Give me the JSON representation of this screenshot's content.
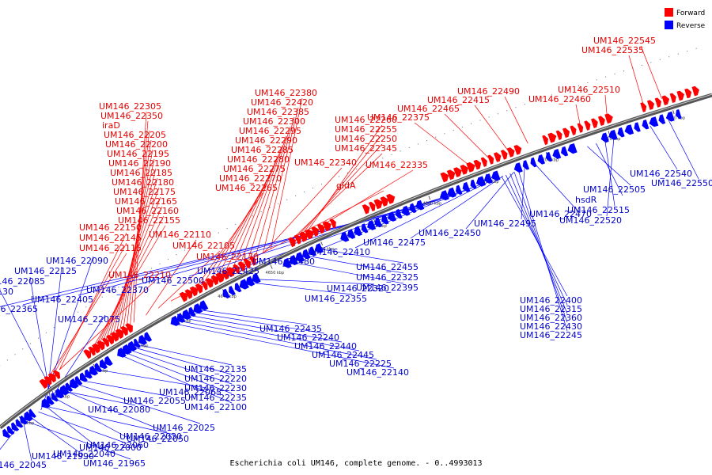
{
  "legend": {
    "forward": {
      "label": "Forward",
      "color": "#ff0000"
    },
    "reverse": {
      "label": "Reverse",
      "color": "#0000ff"
    }
  },
  "caption": "Escherichia coli UM146, complete genome. - 0..4993013",
  "backbone_range_kbp": [
    4585,
    4726
  ],
  "ticks": [
    "4590 kbp",
    "4600 kbp",
    "4610 kbp",
    "4620 kbp",
    "4630 kbp",
    "4640 kbp",
    "4650 kbp",
    "4660 kbp",
    "4670 kbp",
    "4680 kbp",
    "4690 kbp",
    "4700 kbp",
    "4710 kbp",
    "4720 kbp"
  ],
  "forward_labels": [
    "UM146_22545",
    "UM146_22535",
    "UM146_22510",
    "UM146_22460",
    "UM146_22490",
    "UM146_22415",
    "UM146_22465",
    "UM146_22375",
    "UM146_22380",
    "UM146_22420",
    "UM146_22385",
    "UM146_22300",
    "UM146_22295",
    "UM146_22290",
    "UM146_22285",
    "UM146_22280",
    "UM146_22275",
    "UM146_22270",
    "UM146_22265",
    "UM146_22260",
    "UM146_22255",
    "UM146_22250",
    "UM146_22345",
    "UM146_22340",
    "UM146_22335",
    "gldA",
    "UM146_22305",
    "UM146_22350",
    "iraD",
    "UM146_22205",
    "UM146_22200",
    "UM146_22195",
    "UM146_22190",
    "UM146_22185",
    "UM146_22180",
    "UM146_22175",
    "UM146_22165",
    "UM146_22160",
    "UM146_22155",
    "UM146_22150",
    "UM146_22145",
    "UM146_22115",
    "UM146_22110",
    "UM146_22105",
    "UM146_22170",
    "UM146_22210",
    "UM146_22215",
    "UM146_22120"
  ],
  "reverse_labels": [
    "UM146_22540",
    "UM146_22550",
    "UM146_22505",
    "hsdR",
    "UM146_22515",
    "UM146_22520",
    "UM146_22470",
    "UM146_22495",
    "UM146_22450",
    "UM146_22475",
    "UM146_22410",
    "UM146_22480",
    "UM146_22425",
    "UM146_22500",
    "UM146_22370",
    "UM146_22405",
    "UM146_22365",
    "UM146_22390",
    "UM146_22455",
    "UM146_22325",
    "UM146_22395",
    "UM146_22320",
    "UM146_22355",
    "UM146_22400",
    "UM146_22315",
    "UM146_22360",
    "UM146_22430",
    "UM146_22245",
    "UM146_22435",
    "UM146_22240",
    "UM146_22440",
    "UM146_22445",
    "UM146_22225",
    "UM146_22140",
    "UM146_22135",
    "UM146_22220",
    "UM146_22230",
    "UM146_22235",
    "UM146_22100",
    "UM146_22090",
    "UM146_22125",
    "UM146_22085",
    "UM146_22130",
    "UM146_22075",
    "UM146_22065",
    "UM146_22055",
    "UM146_22080",
    "UM146_22025",
    "UM146_22030",
    "UM146_22060",
    "UM146_22040",
    "UM146_22050",
    "UM146_22000",
    "UM146_21990",
    "UM146_22045",
    "UM146_22070",
    "UM146_21965",
    "UM146_22015",
    "UM146_22095",
    "UM146_21955",
    "UM146_21980",
    "UM146_22035",
    "UM146_21970",
    "UM146_22020"
  ]
}
